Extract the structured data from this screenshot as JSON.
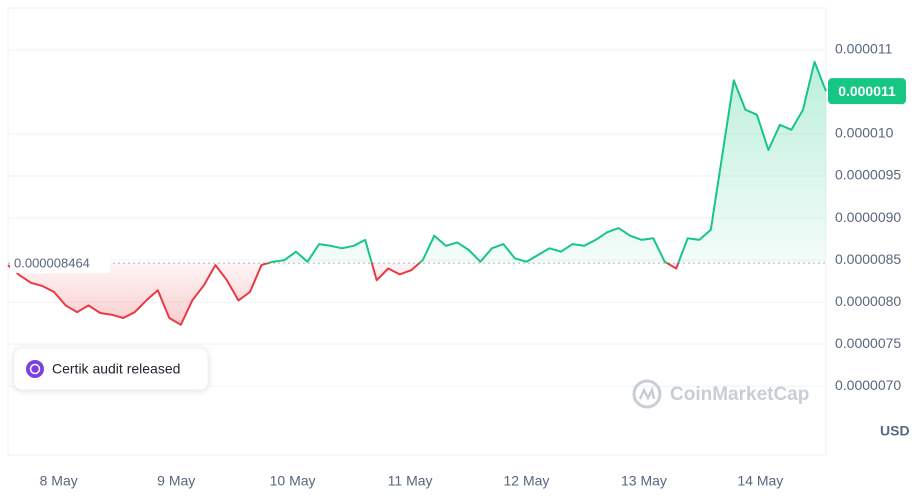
{
  "chart_data": {
    "type": "line",
    "values": [
      8.44e-06,
      8.32e-06,
      8.23e-06,
      8.19e-06,
      8.12e-06,
      7.96e-06,
      7.88e-06,
      7.96e-06,
      7.87e-06,
      7.85e-06,
      7.81e-06,
      7.88e-06,
      8.02e-06,
      8.14e-06,
      7.81e-06,
      7.73e-06,
      8.02e-06,
      8.2e-06,
      8.44e-06,
      8.26e-06,
      8.02e-06,
      8.12e-06,
      8.44e-06,
      8.48e-06,
      8.5e-06,
      8.6e-06,
      8.48e-06,
      8.69e-06,
      8.67e-06,
      8.64e-06,
      8.67e-06,
      8.74e-06,
      8.26e-06,
      8.4e-06,
      8.33e-06,
      8.38e-06,
      8.5e-06,
      8.79e-06,
      8.67e-06,
      8.71e-06,
      8.62e-06,
      8.48e-06,
      8.64e-06,
      8.69e-06,
      8.52e-06,
      8.48e-06,
      8.56e-06,
      8.64e-06,
      8.6e-06,
      8.69e-06,
      8.67e-06,
      8.74e-06,
      8.83e-06,
      8.88e-06,
      8.79e-06,
      8.74e-06,
      8.76e-06,
      8.48e-06,
      8.4e-06,
      8.76e-06,
      8.74e-06,
      8.86e-06,
      9.75e-06,
      1.064e-05,
      1.029e-05,
      1.023e-05,
      9.81e-06,
      1.011e-05,
      1.005e-05,
      1.029e-05,
      1.086e-05,
      1.051e-05
    ],
    "up_color": "#16c784",
    "down_color": "#ea3943",
    "baseline": 8.464e-06,
    "last_value_label": "0.000011",
    "xlim": [
      0,
      71
    ],
    "xticks": [
      {
        "value": 4.4,
        "label": "8 May"
      },
      {
        "value": 14.6,
        "label": "9 May"
      },
      {
        "value": 24.7,
        "label": "10 May"
      },
      {
        "value": 34.9,
        "label": "11 May"
      },
      {
        "value": 45.0,
        "label": "12 May"
      },
      {
        "value": 55.2,
        "label": "13 May"
      },
      {
        "value": 65.3,
        "label": "14 May"
      }
    ],
    "ylim": [
      6.18e-06,
      1.15e-05
    ],
    "yticks": [
      {
        "value": 7e-06,
        "label": "0.0000070"
      },
      {
        "value": 7.5e-06,
        "label": "0.0000075"
      },
      {
        "value": 8e-06,
        "label": "0.0000080"
      },
      {
        "value": 8.5e-06,
        "label": "0.0000085"
      },
      {
        "value": 9e-06,
        "label": "0.0000090"
      },
      {
        "value": 9.5e-06,
        "label": "0.0000095"
      },
      {
        "value": 1e-05,
        "label": "0.000010"
      },
      1.1e-05
    ],
    "grid": true,
    "currency": "USD",
    "watermark": "CoinMarketCap",
    "annotation": "Certik audit released"
  }
}
